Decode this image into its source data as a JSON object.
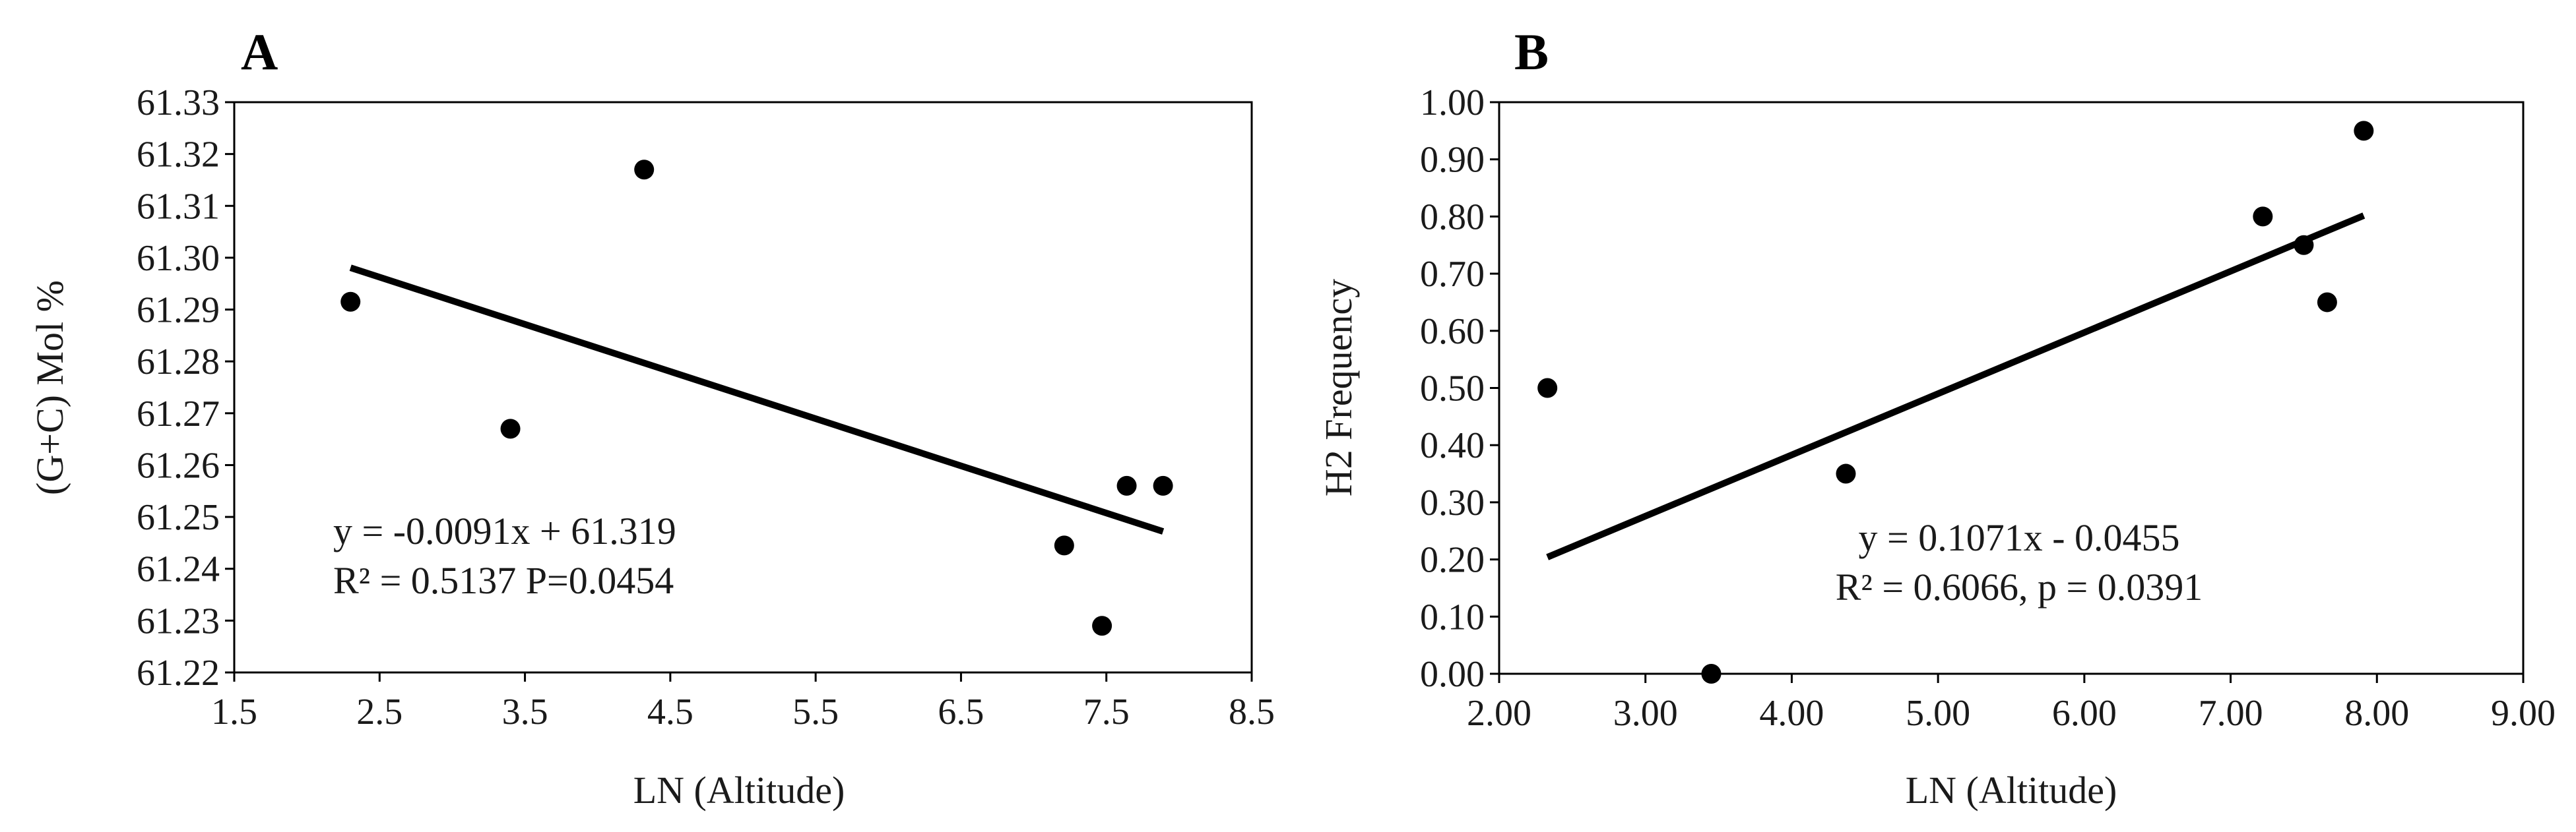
{
  "chart_data": [
    {
      "type": "scatter",
      "panel_label": "A",
      "xlabel": "LN (Altitude)",
      "ylabel": "(G+C) Mol %",
      "xlim": [
        1.5,
        8.5
      ],
      "ylim": [
        61.22,
        61.33
      ],
      "x_ticks": [
        "1.5",
        "2.5",
        "3.5",
        "4.5",
        "5.5",
        "6.5",
        "7.5",
        "8.5"
      ],
      "y_ticks": [
        "61.22",
        "61.23",
        "61.24",
        "61.25",
        "61.26",
        "61.27",
        "61.28",
        "61.29",
        "61.30",
        "61.31",
        "61.32",
        "61.33"
      ],
      "points": [
        {
          "x": 2.3,
          "y": 61.2915
        },
        {
          "x": 3.4,
          "y": 61.267
        },
        {
          "x": 4.32,
          "y": 61.317
        },
        {
          "x": 7.21,
          "y": 61.2445
        },
        {
          "x": 7.47,
          "y": 61.229
        },
        {
          "x": 7.64,
          "y": 61.256
        },
        {
          "x": 7.89,
          "y": 61.256
        }
      ],
      "trendline": {
        "slope": -0.0091,
        "intercept": 61.319,
        "x_range": [
          2.3,
          7.89
        ]
      },
      "annotations": [
        "y = -0.0091x + 61.319",
        "R² = 0.5137  P=0.0454"
      ],
      "grid": false,
      "legend": "none"
    },
    {
      "type": "scatter",
      "panel_label": "B",
      "xlabel": "LN (Altitude)",
      "ylabel": "H2 Frequency",
      "xlim": [
        2.0,
        9.0
      ],
      "ylim": [
        0.0,
        1.0
      ],
      "x_ticks": [
        "2.00",
        "3.00",
        "4.00",
        "5.00",
        "6.00",
        "7.00",
        "8.00",
        "9.00"
      ],
      "y_ticks": [
        "0.00",
        "0.10",
        "0.20",
        "0.30",
        "0.40",
        "0.50",
        "0.60",
        "0.70",
        "0.80",
        "0.90",
        "1.00"
      ],
      "points": [
        {
          "x": 2.33,
          "y": 0.5
        },
        {
          "x": 3.45,
          "y": 0.0
        },
        {
          "x": 4.37,
          "y": 0.35
        },
        {
          "x": 7.22,
          "y": 0.8
        },
        {
          "x": 7.5,
          "y": 0.75
        },
        {
          "x": 7.66,
          "y": 0.65
        },
        {
          "x": 7.91,
          "y": 0.95
        }
      ],
      "trendline": {
        "slope": 0.1071,
        "intercept": -0.0455,
        "x_range": [
          2.33,
          7.91
        ]
      },
      "annotations": [
        "y = 0.1071x - 0.0455",
        "R² = 0.6066, p = 0.0391"
      ],
      "grid": false,
      "legend": "none"
    }
  ]
}
